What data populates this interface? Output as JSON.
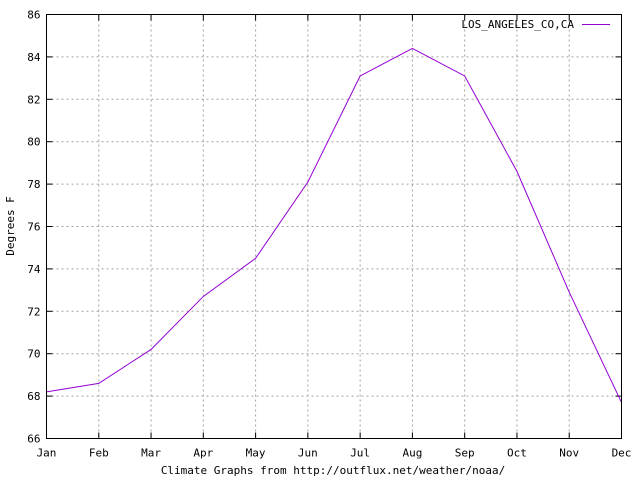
{
  "chart_data": {
    "type": "line",
    "categories": [
      "Jan",
      "Feb",
      "Mar",
      "Apr",
      "May",
      "Jun",
      "Jul",
      "Aug",
      "Sep",
      "Oct",
      "Nov",
      "Dec"
    ],
    "series": [
      {
        "name": "LOS_ANGELES_CO,CA",
        "color": "#9400d3",
        "values": [
          68.2,
          68.6,
          70.2,
          72.7,
          74.5,
          78.1,
          83.1,
          84.4,
          83.1,
          78.6,
          72.9,
          67.7
        ]
      }
    ],
    "xlabel": "Climate Graphs from http://outflux.net/weather/noaa/",
    "ylabel": "Degrees F",
    "ylim": [
      66,
      86
    ],
    "yticks": [
      66,
      68,
      70,
      72,
      74,
      76,
      78,
      80,
      82,
      84,
      86
    ],
    "grid": true,
    "legend_position": "top-right"
  }
}
